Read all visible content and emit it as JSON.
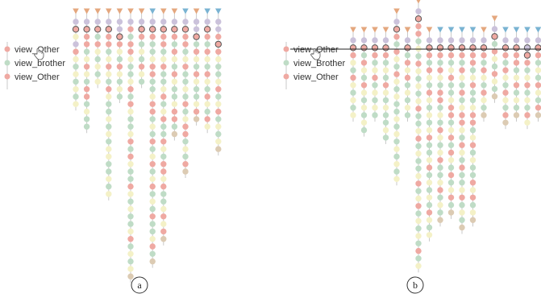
{
  "colors": {
    "other": "#EFA9A2",
    "brother": "#BFDCC6",
    "yellow": "#F4F1C7",
    "purple": "#CBC2DB",
    "tan": "#DCCBB3",
    "stem": "#C9C9C9",
    "tri_orange": "#E4A77E",
    "tri_blue": "#79B3D2",
    "highlight": "#555555"
  },
  "legend": [
    {
      "label": "view_Other",
      "color_key": "other"
    },
    {
      "label": "view_brother",
      "color_key": "brother"
    },
    {
      "label": "view_Other",
      "color_key": "other"
    }
  ],
  "legend_b": [
    {
      "label": "view_Other",
      "color_key": "other"
    },
    {
      "label": "view_Brother",
      "color_key": "brother"
    },
    {
      "label": "view_Other",
      "color_key": "other"
    }
  ],
  "panels": [
    {
      "label": "a",
      "columns": [
        {
          "tri": "o",
          "seq": "pHYPOYBYBYBY"
        },
        {
          "tri": "o",
          "seq": "pHOOBYOYBOOBYBB"
        },
        {
          "tri": "o",
          "seq": "pHBOYBYBY"
        },
        {
          "tri": "o",
          "seq": "pHOOBYOYBOYBBYBYBYYBBYBY"
        },
        {
          "tri": "o",
          "seq": "pPHOYBOYBYB"
        },
        {
          "tri": "o",
          "seq": "pOBOOYBBYOBOYBBYOBOYBBOYBYBBYOBYBYT"
        },
        {
          "tri": "o",
          "seq": "pHOBYBOYB"
        },
        {
          "tri": "b",
          "seq": "pHOBBYOOBBYOOBYBOBYOBYOBYBOBBYOBT"
        },
        {
          "tri": "o",
          "seq": "pHOOBYOBBYOBYOBBOYBOOYOBBYOYOT"
        },
        {
          "tri": "o",
          "seq": "pHOBOYBOYBBYOOBT"
        },
        {
          "tri": "b",
          "seq": "pHOOBYOBBYBOBYOOBYBOT"
        },
        {
          "tri": "o",
          "seq": "pPHBOYBOYBBYOT"
        },
        {
          "tri": "b",
          "seq": "pHOBOYBOYBOYBOY"
        },
        {
          "tri": "b",
          "seq": "pPOHOYBBYOBYOBYBYT"
        }
      ]
    },
    {
      "label": "b",
      "columns": [
        {
          "tri": "o",
          "seq": "pHOYBOYBYBY"
        },
        {
          "tri": "o",
          "seq": "pHBOYBOYBYBYB"
        },
        {
          "tri": "o",
          "seq": "pHOBYOBYBYB"
        },
        {
          "tri": "o",
          "seq": "pHOBYBOYBYBBYB"
        },
        {
          "tri": "o",
          "seq": "pHOBOYBOYBYBBYBYBYBYBY"
        },
        {
          "tri": "o",
          "seq": "pHBOYOBYBYB"
        },
        {
          "tri": "o",
          "seq": "pHOOBYBOYBYBYOBBYOBYBBYOBYOBYBYBOBY"
        },
        {
          "tri": "o",
          "seq": "pHOBOYBOYBYBYOBBYOBYBYBOYBY"
        },
        {
          "tri": "b",
          "seq": "pHOBOYBOOBYBOYBYOBBYOBYBT"
        },
        {
          "tri": "b",
          "seq": "pHOBYOBBYOOBYOBOYBOBYOBT"
        },
        {
          "tri": "b",
          "seq": "pHOBOYBOBYOOYBOYBOBBYOBYBT"
        },
        {
          "tri": "b",
          "seq": "pHOOBYOBBYOOBYOBYBBOYOBYT"
        },
        {
          "tri": "o",
          "seq": "pHOBOYBOYBT"
        },
        {
          "tri": "o",
          "seq": "pHBOYBOYBT"
        },
        {
          "tri": "b",
          "seq": "pHOBOYBOYBOT"
        },
        {
          "tri": "b",
          "seq": "pHOOBYOBYBT"
        },
        {
          "tri": "b",
          "seq": "pPHOBYOBYBOY"
        },
        {
          "tri": "b",
          "seq": "pHOBYBOYBOT"
        },
        {
          "tri": "b",
          "seq": "pHOBOYBOYBYB"
        }
      ]
    }
  ]
}
